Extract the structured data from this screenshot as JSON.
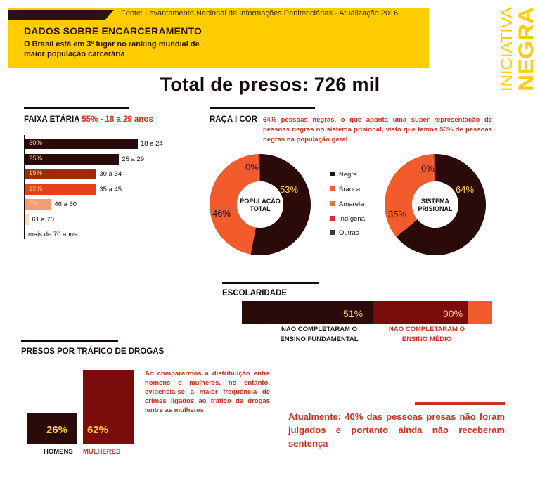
{
  "header": {
    "source": "Fonte: Levantamento Nacional de Informações Penitenciárias - Atualização 2016",
    "title": "DADOS SOBRE ENCARCERAMENTO",
    "subtitle": "O Brasil está em 3º lugar no ranking mundial de maior população carcerária"
  },
  "logo": {
    "line1": "INICIATIVA",
    "line2": "NEGRA"
  },
  "total_title": "Total de presos: 726 mil",
  "sections": {
    "age": {
      "label": "FAIXA ETÁRIA",
      "highlight": "55% - 18 a 29 anos"
    },
    "race": {
      "label": "RAÇA I COR",
      "description": "64% pessoas negras, o que aponta uma super representação de pessoas negras no sistema prisional, visto que temos 53% de pessoas negras na população geral"
    },
    "school": {
      "label": "ESCOLARIDADE"
    },
    "drugs": {
      "label": "PRESOS POR TRÁFICO DE DROGAS",
      "description": "Ao compararmos a distribuição entre homens e mulheres, no entanto, evidencia-se a maior frequência de crimes ligados ao tráfico de drogas lentre as mulheres"
    }
  },
  "note": "Atualmente: 40% das pessoas presas não foram julgados e portanto ainda não receberam sentença",
  "colors": {
    "yellow": "#ffcc00",
    "dark": "#2b0a0a",
    "red_brown": "#7a0c0c",
    "orange": "#f25c2c",
    "rust": "#b0300f",
    "salmon": "#f79a7a",
    "light_orange": "#f26a3a",
    "red": "#e3262a",
    "gray": "#3a3a3a",
    "accent_red": "#c8321e"
  },
  "chart_data": [
    {
      "type": "bar",
      "orientation": "horizontal",
      "title": "FAIXA ETÁRIA",
      "categories": [
        "18 a 24",
        "25 a 29",
        "30 a 34",
        "35 a 45",
        "46 a 60",
        "61 a 70",
        "mais de 70 anos"
      ],
      "values": [
        30,
        25,
        19,
        19,
        7,
        1,
        0
      ],
      "value_labels": [
        "30%",
        "25%",
        "19%",
        "19%",
        "7%",
        "",
        ""
      ],
      "bar_colors": [
        "#2b0a0a",
        "#2b0a0a",
        "#9e2a0a",
        "#e8401c",
        "#f79a7a",
        "#fcd9c6",
        "#ffffff"
      ]
    },
    {
      "type": "pie",
      "title": "POPULAÇÃO TOTAL",
      "labels": [
        "Negra",
        "Branca",
        "Amarela",
        "Indígena",
        "Outras"
      ],
      "values": [
        53,
        46,
        0.3,
        0.4,
        0.3
      ],
      "value_labels": [
        "53%",
        "46%",
        "",
        "0%",
        ""
      ],
      "colors": [
        "#2b0a0a",
        "#f25c2c",
        "#f26a3a",
        "#e3262a",
        "#3a3a3a"
      ]
    },
    {
      "type": "pie",
      "title": "SISTEMA PRISIONAL",
      "labels": [
        "Negra",
        "Branca",
        "Amarela",
        "Indígena",
        "Outras"
      ],
      "values": [
        64,
        35,
        0.3,
        0.4,
        0.3
      ],
      "value_labels": [
        "64%",
        "35%",
        "",
        "0%",
        ""
      ],
      "colors": [
        "#2b0a0a",
        "#f25c2c",
        "#f26a3a",
        "#e3262a",
        "#3a3a3a"
      ]
    },
    {
      "type": "bar",
      "title": "ESCOLARIDADE",
      "categories": [
        "NÃO COMPLETARAM O ENSINO FUNDAMENTAL",
        "NÃO COMPLETARAM O ENSINO MÉDIO"
      ],
      "values": [
        51,
        90
      ],
      "value_labels": [
        "51%",
        "90%"
      ]
    },
    {
      "type": "bar",
      "title": "PRESOS POR TRÁFICO DE DROGAS",
      "categories": [
        "HOMENS",
        "MULHERES"
      ],
      "values": [
        26,
        62
      ],
      "value_labels": [
        "26%",
        "62%"
      ],
      "ylim": [
        0,
        62
      ]
    }
  ]
}
